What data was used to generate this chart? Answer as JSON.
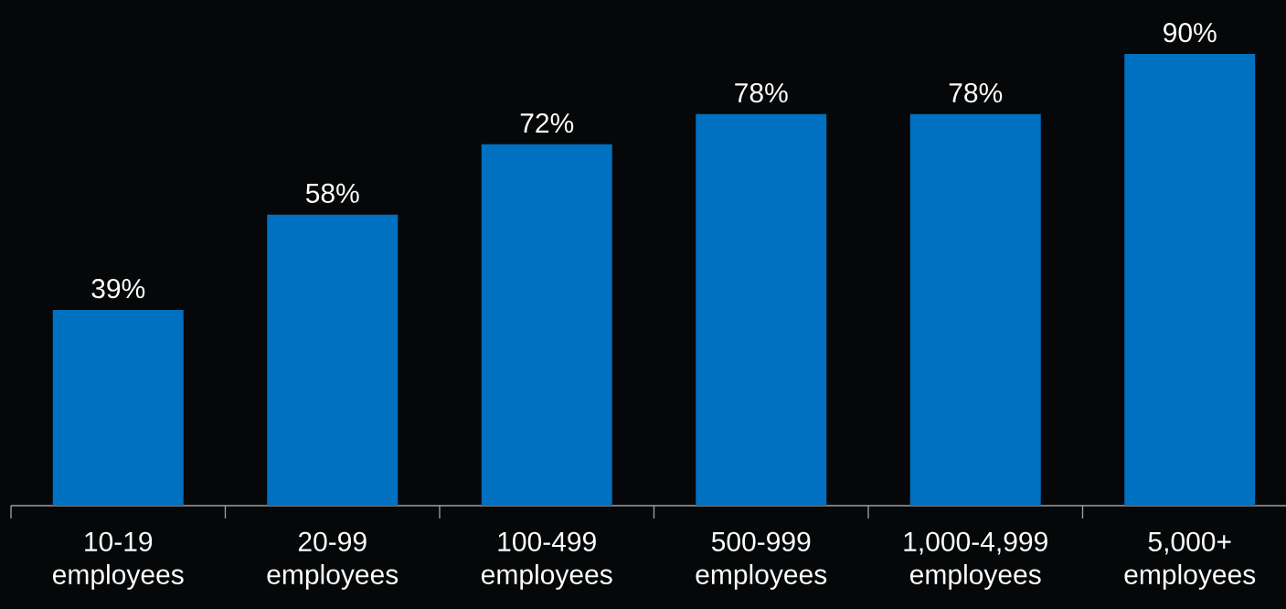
{
  "chart_data": {
    "type": "bar",
    "categories": [
      "10-19 employees",
      "20-99 employees",
      "100-499 employees",
      "500-999 employees",
      "1,000-4,999 employees",
      "5,000+ employees"
    ],
    "values": [
      39,
      58,
      72,
      78,
      78,
      90
    ],
    "value_labels": [
      "39%",
      "58%",
      "72%",
      "78%",
      "78%",
      "90%"
    ],
    "color": "#0070c0"
  }
}
